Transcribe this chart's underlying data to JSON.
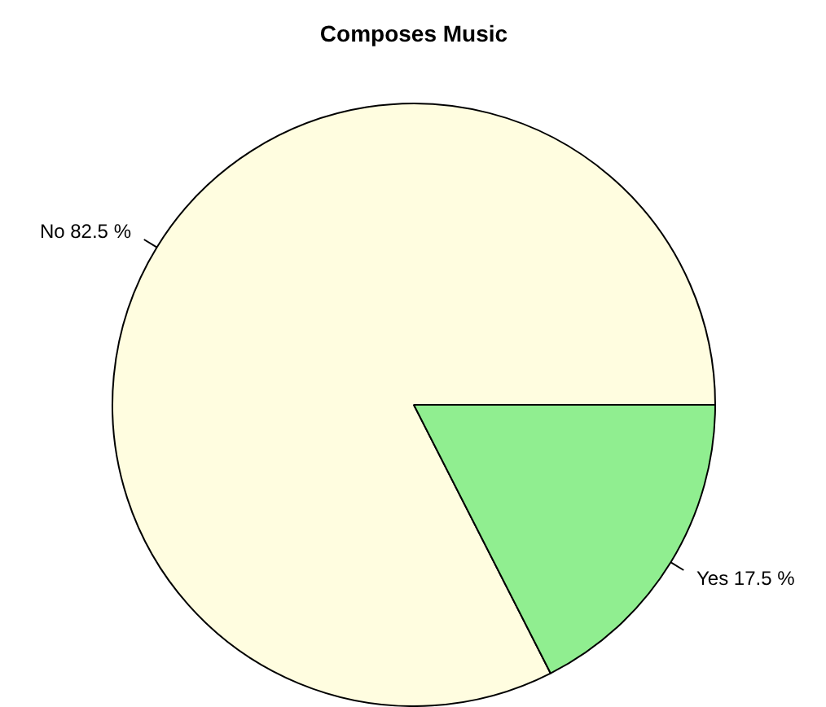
{
  "chart_data": {
    "type": "pie",
    "title": "Composes Music",
    "categories": [
      "No",
      "Yes"
    ],
    "values": [
      82.5,
      17.5
    ],
    "value_labels": [
      "82.5 %",
      "17.5 %"
    ],
    "colors": [
      "#fffde0",
      "#90ee90"
    ]
  }
}
